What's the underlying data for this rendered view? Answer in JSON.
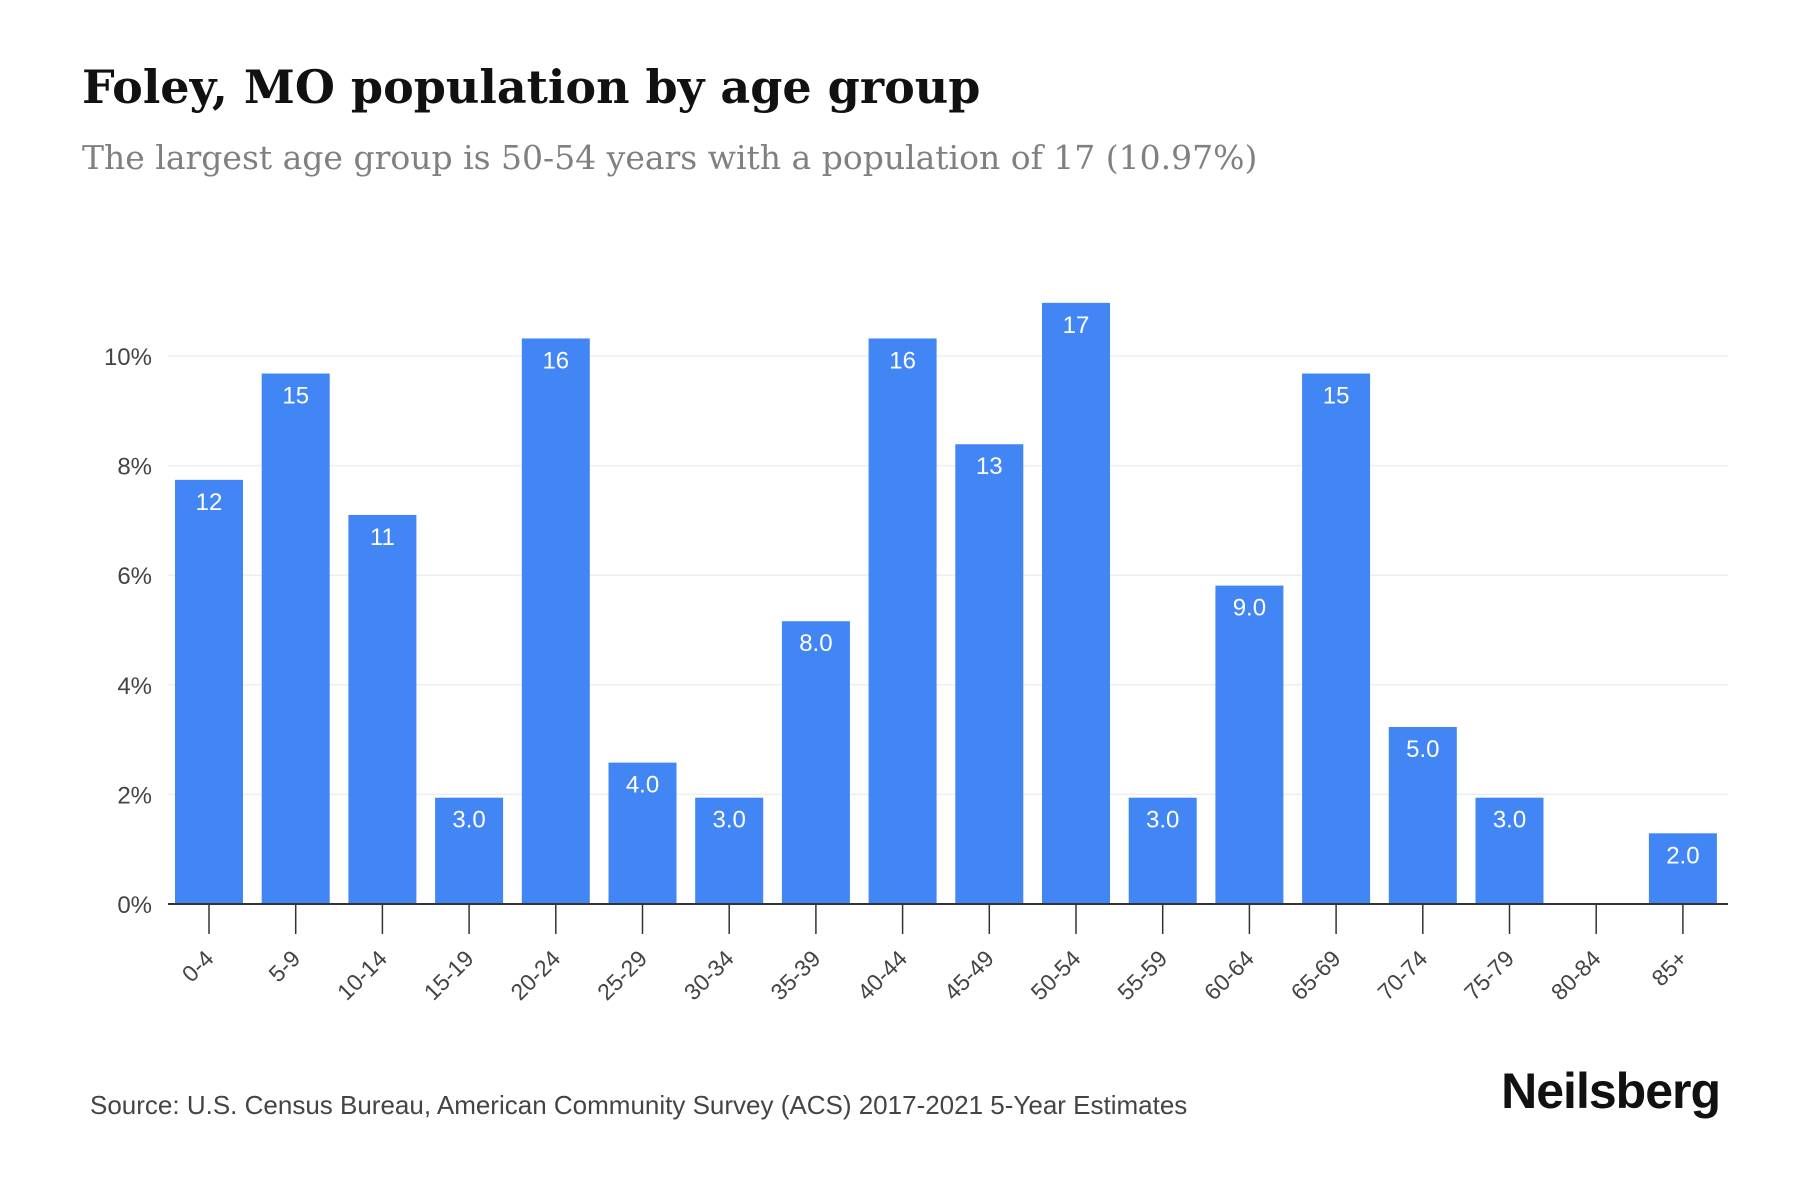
{
  "header": {
    "title": "Foley, MO population by age group",
    "subtitle": "The largest age group is 50-54 years with a population of 17 (10.97%)"
  },
  "footer": {
    "source": "Source: U.S. Census Bureau, American Community Survey (ACS) 2017-2021 5-Year Estimates",
    "brand": "Neilsberg"
  },
  "colors": {
    "bar": "#4285F4",
    "bar_label": "#ffffff",
    "grid": "#eeeeee",
    "axis": "#333333",
    "tick_text": "#444444"
  },
  "chart_data": {
    "type": "bar",
    "title": "Foley, MO population by age group",
    "subtitle": "The largest age group is 50-54 years with a population of 17 (10.97%)",
    "xlabel": "",
    "ylabel": "",
    "categories": [
      "0-4",
      "5-9",
      "10-14",
      "15-19",
      "20-24",
      "25-29",
      "30-34",
      "35-39",
      "40-44",
      "45-49",
      "50-54",
      "55-59",
      "60-64",
      "65-69",
      "70-74",
      "75-79",
      "80-84",
      "85+"
    ],
    "series": [
      {
        "values": [
          7.74,
          9.68,
          7.1,
          1.94,
          10.32,
          2.58,
          1.94,
          5.16,
          10.32,
          8.39,
          10.97,
          1.94,
          5.81,
          9.68,
          3.23,
          1.94,
          0,
          1.29
        ],
        "data_labels": [
          "12",
          "15",
          "11",
          "3.0",
          "16",
          "4.0",
          "3.0",
          "8.0",
          "16",
          "13",
          "17",
          "3.0",
          "9.0",
          "15",
          "5.0",
          "3.0",
          "",
          "2.0"
        ]
      }
    ],
    "ylim": [
      0,
      11
    ],
    "yticks": [
      0,
      2,
      4,
      6,
      8,
      10
    ],
    "ytick_labels": [
      "0%",
      "2%",
      "4%",
      "6%",
      "8%",
      "10%"
    ],
    "grid": true,
    "legend": "none"
  }
}
